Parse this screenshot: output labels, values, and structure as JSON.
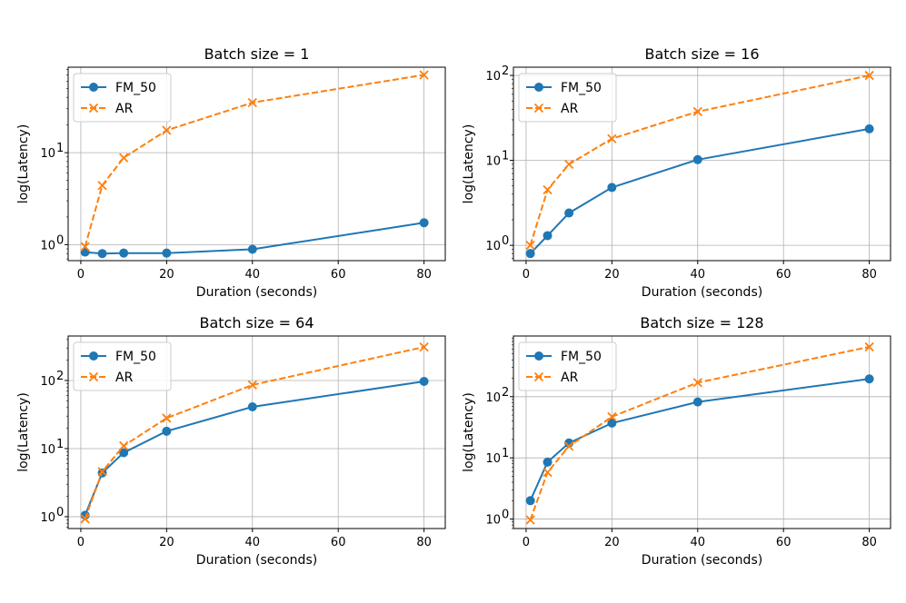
{
  "chart_data": [
    {
      "type": "line",
      "title": "Batch size = 1",
      "xlabel": "Duration (seconds)",
      "ylabel": "log(Latency)",
      "yscale": "log",
      "x": [
        1,
        5,
        10,
        20,
        40,
        80
      ],
      "xlim": [
        -2.95,
        84.95
      ],
      "ylim": [
        0.67,
        85
      ],
      "xticks": [
        0,
        20,
        40,
        60,
        80
      ],
      "yticks": [
        {
          "value": 1,
          "base": "10",
          "exp": "0"
        },
        {
          "value": 10,
          "base": "10",
          "exp": "1"
        }
      ],
      "grid": true,
      "legend_loc": "upper left",
      "series": [
        {
          "name": "FM_50",
          "values": [
            0.83,
            0.8,
            0.81,
            0.81,
            0.89,
            1.73
          ],
          "color": "#1f77b4",
          "style": "solid",
          "marker": "o"
        },
        {
          "name": "AR",
          "values": [
            0.95,
            4.4,
            8.8,
            17.5,
            35.0,
            70.0
          ],
          "color": "#ff7f0e",
          "style": "dashed",
          "marker": "x"
        }
      ]
    },
    {
      "type": "line",
      "title": "Batch size = 16",
      "xlabel": "Duration (seconds)",
      "ylabel": "log(Latency)",
      "yscale": "log",
      "x": [
        1,
        5,
        10,
        20,
        40,
        80
      ],
      "xlim": [
        -2.95,
        84.95
      ],
      "ylim": [
        0.66,
        125
      ],
      "xticks": [
        0,
        20,
        40,
        60,
        80
      ],
      "yticks": [
        {
          "value": 1,
          "base": "10",
          "exp": "0"
        },
        {
          "value": 10,
          "base": "10",
          "exp": "1"
        },
        {
          "value": 100,
          "base": "10",
          "exp": "2"
        }
      ],
      "grid": true,
      "legend_loc": "upper left",
      "series": [
        {
          "name": "FM_50",
          "values": [
            0.8,
            1.3,
            2.4,
            4.8,
            10.2,
            23.5
          ],
          "color": "#1f77b4",
          "style": "solid",
          "marker": "o"
        },
        {
          "name": "AR",
          "values": [
            1.0,
            4.5,
            9.0,
            18.0,
            37.5,
            100.0
          ],
          "color": "#ff7f0e",
          "style": "dashed",
          "marker": "x"
        }
      ]
    },
    {
      "type": "line",
      "title": "Batch size = 64",
      "xlabel": "Duration (seconds)",
      "ylabel": "log(Latency)",
      "yscale": "log",
      "x": [
        1,
        5,
        10,
        20,
        40,
        80
      ],
      "xlim": [
        -2.95,
        84.95
      ],
      "ylim": [
        0.67,
        450
      ],
      "xticks": [
        0,
        20,
        40,
        60,
        80
      ],
      "yticks": [
        {
          "value": 1,
          "base": "10",
          "exp": "0"
        },
        {
          "value": 10,
          "base": "10",
          "exp": "1"
        },
        {
          "value": 100,
          "base": "10",
          "exp": "2"
        }
      ],
      "grid": true,
      "legend_loc": "upper left",
      "series": [
        {
          "name": "FM_50",
          "values": [
            1.05,
            4.4,
            8.7,
            18.0,
            41.0,
            97.0
          ],
          "color": "#1f77b4",
          "style": "solid",
          "marker": "o"
        },
        {
          "name": "AR",
          "values": [
            0.93,
            4.6,
            11.0,
            28.0,
            86.0,
            310.0
          ],
          "color": "#ff7f0e",
          "style": "dashed",
          "marker": "x"
        }
      ]
    },
    {
      "type": "line",
      "title": "Batch size = 128",
      "xlabel": "Duration (seconds)",
      "ylabel": "log(Latency)",
      "yscale": "log",
      "x": [
        1,
        5,
        10,
        20,
        40,
        80
      ],
      "xlim": [
        -2.95,
        84.95
      ],
      "ylim": [
        0.7,
        980
      ],
      "xticks": [
        0,
        20,
        40,
        60,
        80
      ],
      "yticks": [
        {
          "value": 1,
          "base": "10",
          "exp": "0"
        },
        {
          "value": 10,
          "base": "10",
          "exp": "1"
        },
        {
          "value": 100,
          "base": "10",
          "exp": "2"
        }
      ],
      "grid": true,
      "legend_loc": "upper left",
      "series": [
        {
          "name": "FM_50",
          "values": [
            2.0,
            8.5,
            17.5,
            37.0,
            82.0,
            195.0
          ],
          "color": "#1f77b4",
          "style": "solid",
          "marker": "o"
        },
        {
          "name": "AR",
          "values": [
            0.97,
            5.8,
            15.5,
            47.0,
            170.0,
            650.0
          ],
          "color": "#ff7f0e",
          "style": "dashed",
          "marker": "x"
        }
      ]
    }
  ]
}
